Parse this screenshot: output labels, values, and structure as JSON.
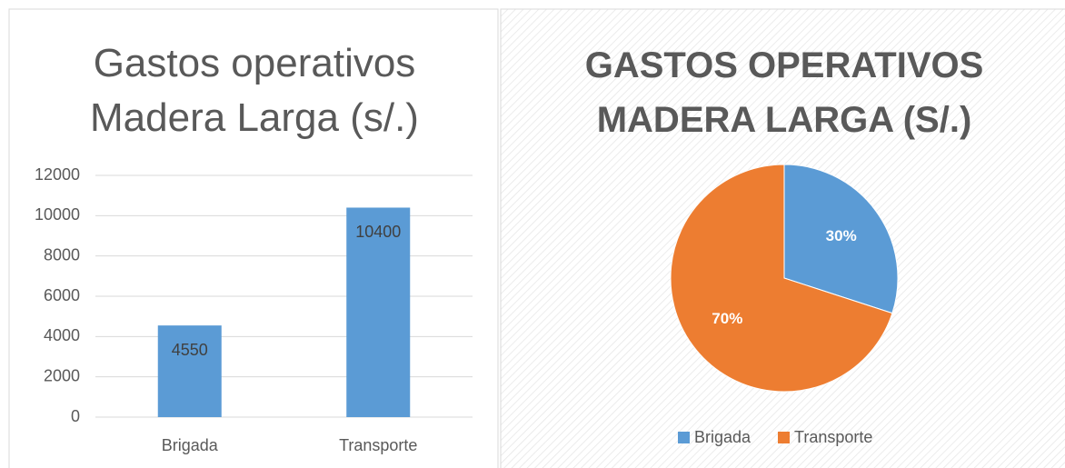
{
  "chart_data": [
    {
      "type": "bar",
      "title": "Gastos operativos Madera Larga (s/.)",
      "categories": [
        "Brigada",
        "Transporte"
      ],
      "values": [
        4550,
        10400
      ],
      "color": "#5b9bd5",
      "ylim": [
        0,
        12000
      ],
      "yticks": [
        0,
        2000,
        4000,
        6000,
        8000,
        10000,
        12000
      ],
      "grid": true
    },
    {
      "type": "pie",
      "title": "GASTOS OPERATIVOS MADERA LARGA (S/.)",
      "categories": [
        "Brigada",
        "Transporte"
      ],
      "values": [
        30,
        70
      ],
      "value_labels": [
        "30%",
        "70%"
      ],
      "colors": [
        "#5b9bd5",
        "#ed7d31"
      ],
      "legend": "bottom"
    }
  ]
}
